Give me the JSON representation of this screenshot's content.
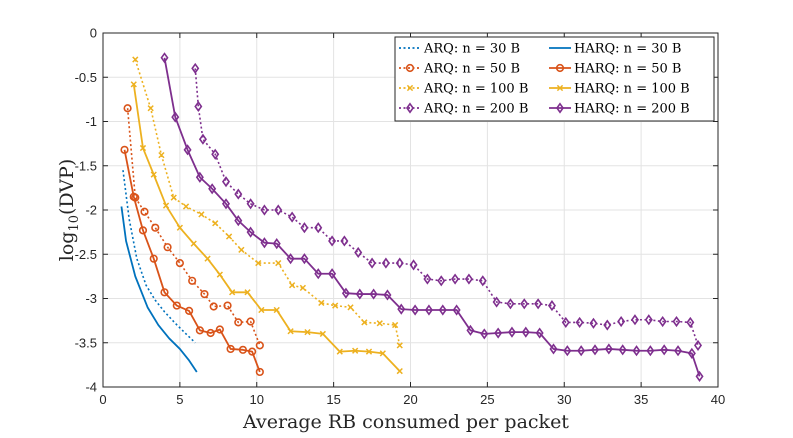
{
  "chart_data": {
    "type": "line",
    "xlabel": "Average RB consumed per packet",
    "ylabel_main": "log",
    "ylabel_sub": "10",
    "ylabel_rest": "(DVP)",
    "xlim": [
      0,
      40
    ],
    "ylim": [
      -4,
      0
    ],
    "xticks": [
      0,
      5,
      10,
      15,
      20,
      25,
      30,
      35,
      40
    ],
    "xtick_labels": [
      "0",
      "5",
      "10",
      "15",
      "20",
      "25",
      "30",
      "35",
      "40"
    ],
    "yticks": [
      0,
      -0.5,
      -1,
      -1.5,
      -2,
      -2.5,
      -3,
      -3.5,
      -4
    ],
    "ytick_labels": [
      "0",
      "-0.5",
      "-1",
      "-1.5",
      "-2",
      "-2.5",
      "-3",
      "-3.5",
      "-4"
    ],
    "grid": true,
    "legend_position": "top-right",
    "series": [
      {
        "name": "ARQ: n = 30 B",
        "scheme": "ARQ",
        "payload": "30 B",
        "color": "#0072BD",
        "dashed": true,
        "marker": "none",
        "x": [
          1.3,
          1.7,
          2.2,
          2.8,
          3.4,
          4.0,
          4.7,
          5.4,
          6.0
        ],
        "y": [
          -1.55,
          -2.1,
          -2.55,
          -2.85,
          -3.02,
          -3.15,
          -3.28,
          -3.4,
          -3.5
        ]
      },
      {
        "name": "HARQ: n = 30 B",
        "scheme": "HARQ",
        "payload": "30 B",
        "color": "#0072BD",
        "dashed": false,
        "marker": "none",
        "x": [
          1.2,
          1.5,
          2.1,
          2.9,
          3.6,
          4.3,
          5.0,
          5.6,
          6.1
        ],
        "y": [
          -1.96,
          -2.35,
          -2.75,
          -3.1,
          -3.3,
          -3.45,
          -3.57,
          -3.7,
          -3.83
        ]
      },
      {
        "name": "ARQ: n = 50 B",
        "scheme": "ARQ",
        "payload": "50 B",
        "color": "#D95319",
        "dashed": true,
        "marker": "circle",
        "x": [
          1.6,
          2.1,
          2.7,
          3.4,
          4.2,
          5.0,
          5.8,
          6.6,
          7.2,
          8.1,
          8.8,
          9.6,
          10.2
        ],
        "y": [
          -0.85,
          -1.86,
          -2.02,
          -2.2,
          -2.42,
          -2.6,
          -2.8,
          -2.95,
          -3.09,
          -3.08,
          -3.27,
          -3.26,
          -3.53
        ]
      },
      {
        "name": "HARQ: n = 50 B",
        "scheme": "HARQ",
        "payload": "50 B",
        "color": "#D95319",
        "dashed": false,
        "marker": "circle",
        "x": [
          1.4,
          2.0,
          2.6,
          3.3,
          4.0,
          4.8,
          5.6,
          6.3,
          7.0,
          7.6,
          8.3,
          9.1,
          9.7,
          10.2
        ],
        "y": [
          -1.32,
          -1.85,
          -2.23,
          -2.55,
          -2.93,
          -3.08,
          -3.14,
          -3.36,
          -3.39,
          -3.35,
          -3.57,
          -3.58,
          -3.6,
          -3.83
        ]
      },
      {
        "name": "ARQ: n = 100 B",
        "scheme": "ARQ",
        "payload": "100 B",
        "color": "#EDB120",
        "dashed": true,
        "marker": "x",
        "x": [
          2.1,
          3.1,
          3.8,
          4.6,
          5.4,
          6.4,
          7.3,
          8.2,
          9.0,
          10.1,
          11.4,
          12.3,
          13.0,
          14.2,
          15.1,
          16.1,
          17.0,
          18.0,
          19.0,
          19.3
        ],
        "y": [
          -0.3,
          -0.85,
          -1.38,
          -1.86,
          -1.96,
          -2.05,
          -2.15,
          -2.3,
          -2.45,
          -2.6,
          -2.6,
          -2.85,
          -2.88,
          -3.05,
          -3.08,
          -3.1,
          -3.27,
          -3.28,
          -3.3,
          -3.53
        ]
      },
      {
        "name": "HARQ: n = 100 B",
        "scheme": "HARQ",
        "payload": "100 B",
        "color": "#EDB120",
        "dashed": false,
        "marker": "x",
        "x": [
          2.0,
          2.6,
          3.3,
          4.1,
          5.0,
          5.9,
          6.8,
          7.6,
          8.4,
          9.4,
          10.3,
          11.3,
          12.2,
          13.3,
          14.3,
          15.4,
          16.4,
          17.3,
          18.2,
          19.3
        ],
        "y": [
          -0.58,
          -1.3,
          -1.6,
          -1.95,
          -2.2,
          -2.38,
          -2.55,
          -2.73,
          -2.93,
          -2.93,
          -3.13,
          -3.13,
          -3.37,
          -3.38,
          -3.4,
          -3.6,
          -3.59,
          -3.6,
          -3.62,
          -3.82
        ]
      },
      {
        "name": "ARQ: n = 200 B",
        "scheme": "ARQ",
        "payload": "200 B",
        "color": "#7E2F8E",
        "dashed": true,
        "marker": "diamond",
        "x": [
          6.0,
          6.2,
          6.5,
          7.3,
          8.0,
          8.8,
          9.6,
          10.5,
          11.4,
          12.3,
          13.1,
          14.0,
          14.9,
          15.7,
          16.6,
          17.5,
          18.4,
          19.3,
          20.2,
          21.1,
          22.0,
          22.9,
          23.8,
          24.7,
          25.6,
          26.5,
          27.4,
          28.3,
          29.2,
          30.1,
          31.0,
          31.9,
          32.8,
          33.7,
          34.6,
          35.5,
          36.4,
          37.3,
          38.2,
          38.7
        ],
        "y": [
          -0.4,
          -0.83,
          -1.2,
          -1.37,
          -1.68,
          -1.82,
          -1.93,
          -2.0,
          -2.0,
          -2.08,
          -2.2,
          -2.2,
          -2.35,
          -2.35,
          -2.48,
          -2.6,
          -2.6,
          -2.6,
          -2.62,
          -2.78,
          -2.8,
          -2.78,
          -2.78,
          -2.8,
          -3.04,
          -3.06,
          -3.06,
          -3.06,
          -3.08,
          -3.27,
          -3.27,
          -3.28,
          -3.3,
          -3.26,
          -3.24,
          -3.24,
          -3.26,
          -3.26,
          -3.27,
          -3.53
        ]
      },
      {
        "name": "HARQ: n = 200 B",
        "scheme": "HARQ",
        "payload": "200 B",
        "color": "#7E2F8E",
        "dashed": false,
        "marker": "diamond",
        "x": [
          4.0,
          4.7,
          5.5,
          6.3,
          7.1,
          8.0,
          8.8,
          9.6,
          10.5,
          11.3,
          12.2,
          13.1,
          14.0,
          14.9,
          15.8,
          16.7,
          17.6,
          18.5,
          19.4,
          20.3,
          21.2,
          22.1,
          23.0,
          23.9,
          24.8,
          25.7,
          26.6,
          27.5,
          28.4,
          29.3,
          30.2,
          31.1,
          32.0,
          32.9,
          33.8,
          34.7,
          35.6,
          36.5,
          37.4,
          38.3,
          38.8
        ],
        "y": [
          -0.28,
          -0.95,
          -1.32,
          -1.63,
          -1.76,
          -1.93,
          -2.12,
          -2.25,
          -2.37,
          -2.38,
          -2.55,
          -2.55,
          -2.72,
          -2.72,
          -2.94,
          -2.95,
          -2.95,
          -2.96,
          -3.12,
          -3.13,
          -3.13,
          -3.13,
          -3.13,
          -3.36,
          -3.4,
          -3.39,
          -3.38,
          -3.38,
          -3.39,
          -3.57,
          -3.59,
          -3.59,
          -3.58,
          -3.57,
          -3.58,
          -3.59,
          -3.59,
          -3.58,
          -3.59,
          -3.62,
          -3.88
        ]
      }
    ],
    "legend_rows": [
      [
        "ARQ: n = 30 B",
        "HARQ: n = 30 B"
      ],
      [
        "ARQ: n = 50 B",
        "HARQ: n = 50 B"
      ],
      [
        "ARQ: n = 100 B",
        "HARQ: n = 100 B"
      ],
      [
        "ARQ: n = 200 B",
        "HARQ: n = 200 B"
      ]
    ]
  }
}
